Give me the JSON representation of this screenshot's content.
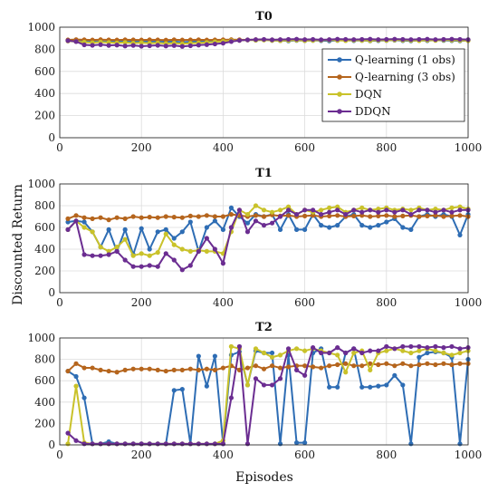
{
  "chart_data": {
    "type": "line",
    "xlabel": "Episodes",
    "ylabel": "Discounted Return",
    "legend": {
      "placement": "top-right of first panel",
      "entries": [
        "Q-learning (1 obs)",
        "Q-learning (3 obs)",
        "DQN",
        "DDQN"
      ]
    },
    "colors": {
      "Q-learning (1 obs)": "#2E6DB4",
      "Q-learning (3 obs)": "#B5651D",
      "DQN": "#C9C22A",
      "DDQN": "#6B2D91"
    },
    "grid": true,
    "x": [
      20,
      40,
      60,
      80,
      100,
      120,
      140,
      160,
      180,
      200,
      220,
      240,
      260,
      280,
      300,
      320,
      340,
      360,
      380,
      400,
      420,
      440,
      460,
      480,
      500,
      520,
      540,
      560,
      580,
      600,
      620,
      640,
      660,
      680,
      700,
      720,
      740,
      760,
      780,
      800,
      820,
      840,
      860,
      880,
      900,
      920,
      940,
      960,
      980,
      1000
    ],
    "panels": [
      {
        "title": "T0",
        "xlim": [
          0,
          1000
        ],
        "ylim": [
          0,
          1000
        ],
        "xticks": [
          "0",
          "200",
          "400",
          "600",
          "800",
          "1000"
        ],
        "yticks": [
          "0",
          "200",
          "400",
          "600",
          "800",
          "1000"
        ],
        "series": [
          {
            "name": "Q-learning (1 obs)",
            "values": [
              880,
              875,
              878,
              870,
              872,
              868,
              875,
              870,
              873,
              868,
              870,
              872,
              868,
              870,
              865,
              868,
              870,
              872,
              875,
              878,
              880,
              882,
              885,
              883,
              885,
              880,
              878,
              876,
              880,
              878,
              880,
              878,
              876,
              880,
              882,
              878,
              880,
              876,
              878,
              880,
              882,
              878,
              876,
              880,
              878,
              882,
              880,
              878,
              876,
              880
            ]
          },
          {
            "name": "Q-learning (3 obs)",
            "values": [
              885,
              888,
              886,
              884,
              887,
              885,
              884,
              886,
              885,
              884,
              886,
              885,
              883,
              886,
              884,
              885,
              886,
              884,
              885,
              886,
              887,
              886,
              885,
              887,
              886,
              885,
              886,
              887,
              885,
              886,
              885,
              884,
              886,
              885,
              887,
              886,
              885,
              884,
              886,
              885,
              887,
              886,
              885,
              884,
              886,
              885,
              887,
              886,
              885,
              884
            ]
          },
          {
            "name": "DQN",
            "values": [
              875,
              870,
              865,
              860,
              866,
              862,
              858,
              862,
              856,
              860,
              855,
              858,
              852,
              856,
              850,
              855,
              858,
              862,
              868,
              872,
              878,
              880,
              884,
              882,
              884,
              880,
              878,
              880,
              882,
              878,
              880,
              882,
              884,
              880,
              878,
              882,
              880,
              878,
              882,
              880,
              884,
              882,
              880,
              878,
              882,
              880,
              884,
              882,
              880,
              878
            ]
          },
          {
            "name": "DDQN",
            "values": [
              878,
              870,
              840,
              836,
              842,
              835,
              838,
              830,
              835,
              828,
              832,
              836,
              830,
              834,
              826,
              832,
              838,
              842,
              848,
              855,
              870,
              880,
              885,
              888,
              890,
              886,
              888,
              890,
              892,
              888,
              890,
              886,
              888,
              892,
              890,
              888,
              890,
              892,
              888,
              890,
              892,
              890,
              888,
              890,
              892,
              888,
              890,
              892,
              890,
              888
            ]
          }
        ]
      },
      {
        "title": "T1",
        "xlim": [
          0,
          1000
        ],
        "ylim": [
          0,
          1000
        ],
        "xticks": [
          "0",
          "200",
          "400",
          "600",
          "800",
          "1000"
        ],
        "yticks": [
          "0",
          "200",
          "400",
          "600",
          "800",
          "1000"
        ],
        "series": [
          {
            "name": "Q-learning (1 obs)",
            "values": [
              650,
              660,
              650,
              560,
              420,
              580,
              380,
              580,
              350,
              590,
              400,
              560,
              580,
              500,
              560,
              650,
              380,
              600,
              660,
              580,
              780,
              700,
              640,
              720,
              700,
              720,
              580,
              720,
              580,
              580,
              720,
              620,
              600,
              620,
              700,
              720,
              620,
              600,
              620,
              650,
              680,
              600,
              580,
              700,
              720,
              700,
              720,
              700,
              530,
              720
            ]
          },
          {
            "name": "Q-learning (3 obs)",
            "values": [
              680,
              710,
              690,
              680,
              690,
              670,
              690,
              680,
              700,
              690,
              695,
              690,
              700,
              695,
              690,
              705,
              700,
              710,
              700,
              700,
              720,
              710,
              700,
              710,
              700,
              715,
              705,
              710,
              700,
              705,
              710,
              700,
              705,
              710,
              700,
              705,
              710,
              700,
              705,
              710,
              700,
              705,
              710,
              700,
              705,
              710,
              700,
              705,
              710,
              700
            ]
          },
          {
            "name": "DQN",
            "values": [
              580,
              660,
              600,
              560,
              420,
              380,
              420,
              490,
              340,
              360,
              340,
              370,
              540,
              440,
              400,
              380,
              390,
              380,
              380,
              360,
              560,
              760,
              720,
              800,
              760,
              740,
              760,
              790,
              720,
              760,
              740,
              760,
              780,
              790,
              740,
              760,
              780,
              760,
              770,
              780,
              760,
              770,
              760,
              780,
              760,
              770,
              760,
              780,
              790,
              770
            ]
          },
          {
            "name": "DDQN",
            "values": [
              580,
              660,
              350,
              340,
              340,
              350,
              380,
              300,
              240,
              240,
              250,
              240,
              360,
              300,
              210,
              250,
              380,
              500,
              400,
              270,
              600,
              760,
              560,
              660,
              620,
              640,
              700,
              760,
              720,
              760,
              760,
              720,
              740,
              760,
              720,
              760,
              740,
              760,
              740,
              760,
              740,
              760,
              720,
              760,
              760,
              740,
              760,
              740,
              760,
              760
            ]
          }
        ]
      },
      {
        "title": "T2",
        "xlim": [
          0,
          1000
        ],
        "ylim": [
          0,
          1000
        ],
        "xticks": [
          "0",
          "200",
          "400",
          "600",
          "800",
          "1000"
        ],
        "yticks": [
          "0",
          "200",
          "400",
          "600",
          "800",
          "1000"
        ],
        "series": [
          {
            "name": "Q-learning (1 obs)",
            "values": [
              690,
              640,
              440,
              10,
              10,
              30,
              10,
              10,
              10,
              10,
              10,
              10,
              10,
              510,
              520,
              10,
              830,
              550,
              830,
              10,
              840,
              870,
              560,
              880,
              860,
              860,
              10,
              840,
              20,
              20,
              860,
              900,
              540,
              540,
              860,
              900,
              540,
              540,
              550,
              560,
              650,
              560,
              10,
              820,
              860,
              870,
              860,
              820,
              10,
              800
            ]
          },
          {
            "name": "Q-learning (3 obs)",
            "values": [
              690,
              760,
              720,
              720,
              700,
              690,
              680,
              700,
              710,
              710,
              710,
              700,
              690,
              700,
              700,
              710,
              700,
              710,
              700,
              720,
              740,
              700,
              720,
              740,
              710,
              740,
              720,
              730,
              740,
              740,
              730,
              720,
              740,
              750,
              760,
              740,
              740,
              760,
              750,
              760,
              740,
              760,
              740,
              750,
              760,
              750,
              760,
              750,
              760,
              760
            ]
          },
          {
            "name": "DQN",
            "values": [
              10,
              550,
              20,
              10,
              10,
              10,
              10,
              10,
              10,
              10,
              10,
              10,
              10,
              10,
              10,
              10,
              10,
              10,
              10,
              40,
              920,
              900,
              560,
              900,
              860,
              820,
              840,
              880,
              900,
              880,
              900,
              880,
              860,
              840,
              680,
              860,
              880,
              700,
              860,
              880,
              900,
              880,
              860,
              880,
              900,
              880,
              860,
              840,
              860,
              880
            ]
          },
          {
            "name": "DDQN",
            "values": [
              110,
              40,
              10,
              10,
              10,
              10,
              10,
              10,
              10,
              10,
              10,
              10,
              10,
              10,
              10,
              10,
              10,
              10,
              10,
              10,
              440,
              920,
              10,
              620,
              560,
              560,
              620,
              900,
              700,
              650,
              910,
              860,
              860,
              910,
              860,
              900,
              860,
              880,
              880,
              920,
              900,
              920,
              920,
              920,
              910,
              920,
              910,
              920,
              900,
              910
            ]
          }
        ]
      }
    ]
  }
}
